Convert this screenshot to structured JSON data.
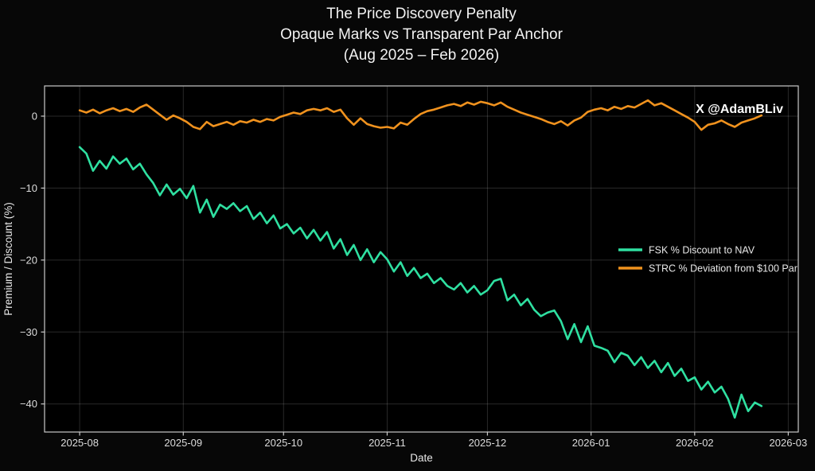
{
  "chart": {
    "title_lines": [
      "The Price Discovery Penalty",
      "Opaque Marks vs Transparent Par Anchor",
      "(Aug 2025 – Feb 2026)"
    ],
    "watermark": "X @AdamBLiv",
    "colors": {
      "background": "#070707",
      "plot_background": "#000000",
      "grid": "rgba(255,255,255,0.16)",
      "spine": "#c9c9c9",
      "text": "#e8e8e8",
      "tick_text": "#dcdcdc",
      "watermark_text": "#ffffff",
      "fsk_green": "#2fe0a1",
      "strc_orange": "#f0921e"
    }
  },
  "chart_data": {
    "type": "line",
    "title": "The Price Discovery Penalty — Opaque Marks vs Transparent Par Anchor (Aug 2025 – Feb 2026)",
    "xlabel": "Date",
    "ylabel": "Premium / Discount (%)",
    "grid": true,
    "legend_position": "center right",
    "x_unit": "days since 2025-08-01",
    "xlim_days": [
      -10.5,
      215
    ],
    "ylim": [
      -43.9,
      4.2
    ],
    "x_ticks": [
      {
        "label": "2025-08",
        "day": 0
      },
      {
        "label": "2025-09",
        "day": 31
      },
      {
        "label": "2025-10",
        "day": 61
      },
      {
        "label": "2025-11",
        "day": 92
      },
      {
        "label": "2025-12",
        "day": 122
      },
      {
        "label": "2026-01",
        "day": 153
      },
      {
        "label": "2026-02",
        "day": 184
      },
      {
        "label": "2026-03",
        "day": 212
      }
    ],
    "y_ticks": [
      {
        "label": "0",
        "value": 0
      },
      {
        "label": "−10",
        "value": -10
      },
      {
        "label": "−20",
        "value": -20
      },
      {
        "label": "−30",
        "value": -30
      },
      {
        "label": "−40",
        "value": -40
      }
    ],
    "days": [
      0,
      2,
      4,
      6,
      8,
      10,
      12,
      14,
      16,
      18,
      20,
      22,
      24,
      26,
      28,
      30,
      32,
      34,
      36,
      38,
      40,
      42,
      44,
      46,
      48,
      50,
      52,
      54,
      56,
      58,
      60,
      62,
      64,
      66,
      68,
      70,
      72,
      74,
      76,
      78,
      80,
      82,
      84,
      86,
      88,
      90,
      92,
      94,
      96,
      98,
      100,
      102,
      104,
      106,
      108,
      110,
      112,
      114,
      116,
      118,
      120,
      122,
      124,
      126,
      128,
      130,
      132,
      134,
      136,
      138,
      140,
      142,
      144,
      146,
      148,
      150,
      152,
      154,
      156,
      158,
      160,
      162,
      164,
      166,
      168,
      170,
      172,
      174,
      176,
      178,
      180,
      182,
      184,
      186,
      188,
      190,
      192,
      194,
      196,
      198,
      200,
      202,
      204
    ],
    "series": [
      {
        "name": "FSK % Discount to NAV",
        "color": "#2fe0a1",
        "values": [
          -4.3,
          -5.2,
          -7.6,
          -6.2,
          -7.3,
          -5.6,
          -6.6,
          -5.9,
          -7.4,
          -6.6,
          -8.1,
          -9.3,
          -11.0,
          -9.5,
          -10.9,
          -10.1,
          -11.4,
          -9.7,
          -13.4,
          -11.6,
          -14.0,
          -12.3,
          -12.9,
          -12.1,
          -13.2,
          -12.5,
          -14.3,
          -13.4,
          -14.9,
          -13.8,
          -15.6,
          -15.0,
          -16.3,
          -15.5,
          -17.0,
          -15.8,
          -17.3,
          -16.1,
          -18.4,
          -17.1,
          -19.3,
          -17.9,
          -20.0,
          -18.5,
          -20.3,
          -18.9,
          -19.9,
          -21.6,
          -20.3,
          -22.2,
          -21.1,
          -22.5,
          -21.9,
          -23.2,
          -22.5,
          -23.6,
          -24.1,
          -23.2,
          -24.5,
          -23.6,
          -24.8,
          -24.2,
          -22.9,
          -22.6,
          -25.6,
          -24.8,
          -26.3,
          -25.4,
          -26.9,
          -27.8,
          -27.3,
          -27.0,
          -28.5,
          -31.0,
          -28.9,
          -31.4,
          -29.2,
          -31.9,
          -32.2,
          -32.6,
          -34.2,
          -32.9,
          -33.3,
          -34.6,
          -33.5,
          -35.0,
          -34.0,
          -35.6,
          -34.3,
          -36.1,
          -35.1,
          -36.8,
          -36.3,
          -38.0,
          -36.9,
          -38.4,
          -37.6,
          -39.3,
          -41.9,
          -38.7,
          -41.0,
          -39.8,
          -40.3
        ]
      },
      {
        "name": "STRC % Deviation from $100 Par",
        "color": "#f0921e",
        "values": [
          0.8,
          0.5,
          0.9,
          0.4,
          0.8,
          1.1,
          0.7,
          1.0,
          0.6,
          1.2,
          1.6,
          0.9,
          0.2,
          -0.5,
          0.1,
          -0.3,
          -0.8,
          -1.5,
          -1.8,
          -0.8,
          -1.4,
          -1.1,
          -0.8,
          -1.2,
          -0.7,
          -0.9,
          -0.5,
          -0.8,
          -0.4,
          -0.6,
          -0.1,
          0.2,
          0.5,
          0.3,
          0.8,
          1.0,
          0.8,
          1.1,
          0.6,
          0.9,
          -0.3,
          -1.2,
          -0.3,
          -1.1,
          -1.4,
          -1.6,
          -1.5,
          -1.7,
          -0.9,
          -1.2,
          -0.4,
          0.3,
          0.7,
          0.9,
          1.2,
          1.5,
          1.7,
          1.4,
          1.9,
          1.6,
          2.0,
          1.8,
          1.5,
          1.9,
          1.3,
          0.9,
          0.5,
          0.2,
          -0.1,
          -0.4,
          -0.8,
          -1.1,
          -0.7,
          -1.3,
          -0.6,
          -0.2,
          0.6,
          0.9,
          1.1,
          0.8,
          1.3,
          1.0,
          1.4,
          1.2,
          1.7,
          2.2,
          1.5,
          1.8,
          1.3,
          0.8,
          0.3,
          -0.2,
          -0.8,
          -1.9,
          -1.2,
          -1.0,
          -0.6,
          -1.1,
          -1.5,
          -0.9,
          -0.6,
          -0.3,
          0.1
        ]
      }
    ]
  }
}
